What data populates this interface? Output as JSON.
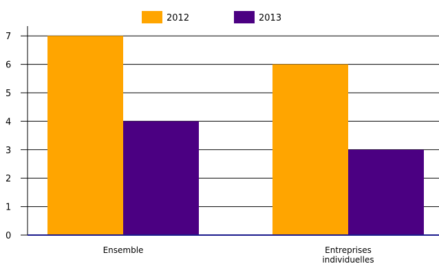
{
  "chart_data": {
    "type": "bar",
    "categories": [
      [
        "Ensemble"
      ],
      [
        "Entreprises",
        "individuelles"
      ]
    ],
    "series": [
      {
        "name": "2012",
        "values": [
          7,
          6
        ],
        "color": "#ffa500"
      },
      {
        "name": "2013",
        "values": [
          4,
          3
        ],
        "color": "#4b0082"
      }
    ],
    "y_ticks": [
      "0",
      "1",
      "2",
      "3",
      "4",
      "5",
      "6",
      "7"
    ],
    "ylim": [
      0,
      7
    ],
    "grid": true,
    "legend_position": "top"
  }
}
